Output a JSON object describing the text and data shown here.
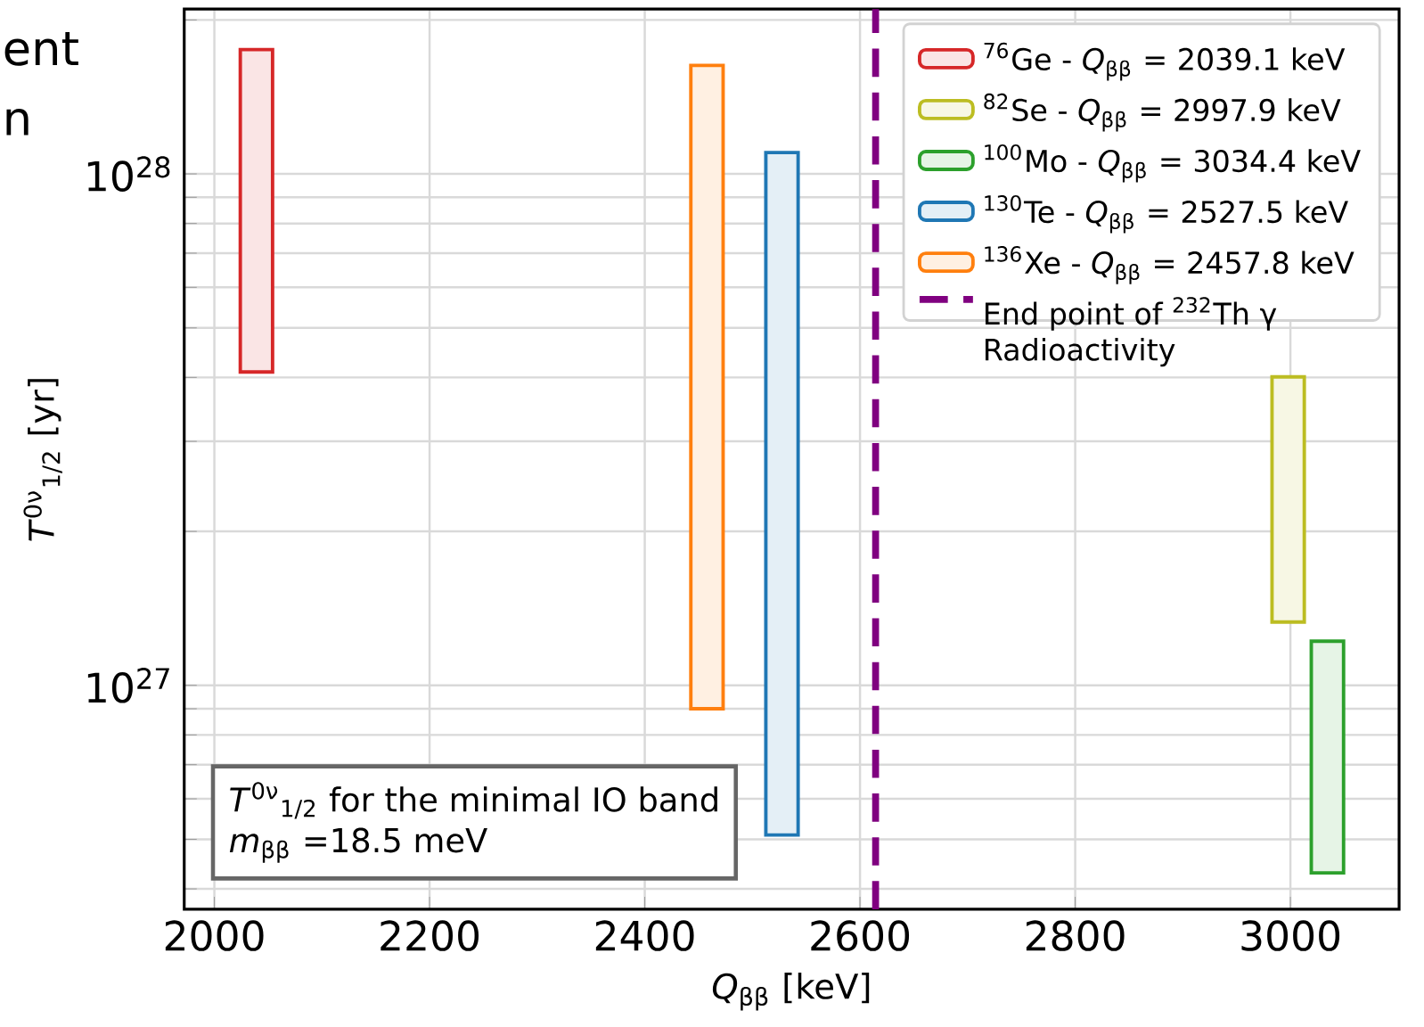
{
  "chart_data": {
    "type": "bar",
    "xlabel": "*Q*$_{ββ}$ [keV]",
    "ylabel": "*T*$^{0ν}$$_{1/2}$ [yr]",
    "series": [
      {
        "name": "$^{76}$Ge - *Q*$_{ββ}$ = 2039.1 keV",
        "color": "#d62728",
        "x": [
          2039.1
        ],
        "base": [
          4.1e+27
        ],
        "values": [
          1.34e+28
        ]
      },
      {
        "name": "$^{82}$Se - *Q*$_{ββ}$ = 2997.9 keV",
        "color": "#bcbd22",
        "x": [
          2997.9
        ],
        "base": [
          1.33e+27
        ],
        "values": [
          2.68e+27
        ]
      },
      {
        "name": "$^{100}$Mo - *Q*$_{ββ}$ = 3034.4 keV",
        "color": "#2ca02c",
        "x": [
          3034.4
        ],
        "base": [
          4.3e+26
        ],
        "values": [
          7.9e+26
        ]
      },
      {
        "name": "$^{130}$Te - *Q*$_{ββ}$ = 2527.5 keV",
        "color": "#1f77b4",
        "x": [
          2527.5
        ],
        "base": [
          5.1e+26
        ],
        "values": [
          1.05e+28
        ]
      },
      {
        "name": "$^{136}$Xe - *Q*$_{ββ}$ = 2457.8 keV",
        "color": "#ff7f0e",
        "x": [
          2457.8
        ],
        "base": [
          9e+26
        ],
        "values": [
          1.54e+28
        ]
      }
    ],
    "ref_lines": [
      {
        "axis": "x",
        "value": 2614.5,
        "label": "End point of $^{232}$Th γ Radioactivity",
        "color": "#800080",
        "line_style": "dashed"
      }
    ],
    "xlim": [
      1972,
      3101
    ],
    "xticks": [
      2000,
      2200,
      2400,
      2600,
      2800,
      3000
    ],
    "ylim": [
      3.65e+26,
      2.1e+28
    ],
    "yticks": [
      {
        "value": 4e+26,
        "label": null
      },
      {
        "value": 5e+26,
        "label": null
      },
      {
        "value": 6e+26,
        "label": null
      },
      {
        "value": 7e+26,
        "label": null
      },
      {
        "value": 8e+26,
        "label": null
      },
      {
        "value": 9e+26,
        "label": null
      },
      {
        "value": 1e+27,
        "label": "10$^{27}$"
      },
      {
        "value": 2e+27,
        "label": null
      },
      {
        "value": 3e+27,
        "label": null
      },
      {
        "value": 4e+27,
        "label": null
      },
      {
        "value": 5e+27,
        "label": null
      },
      {
        "value": 6e+27,
        "label": null
      },
      {
        "value": 7e+27,
        "label": null
      },
      {
        "value": 8e+27,
        "label": null
      },
      {
        "value": 9e+27,
        "label": null
      },
      {
        "value": 1e+28,
        "label": "10$^{28}$"
      },
      {
        "value": 2e+28,
        "label": null
      }
    ],
    "log": "y",
    "grid": true,
    "legend": "top right",
    "annotations": [
      "ent",
      "n",
      "*T*$^{0ν}$$_{1/2}$ for the minimal IO band",
      "*m*$_{ββ}$ =18.5 meV"
    ]
  }
}
